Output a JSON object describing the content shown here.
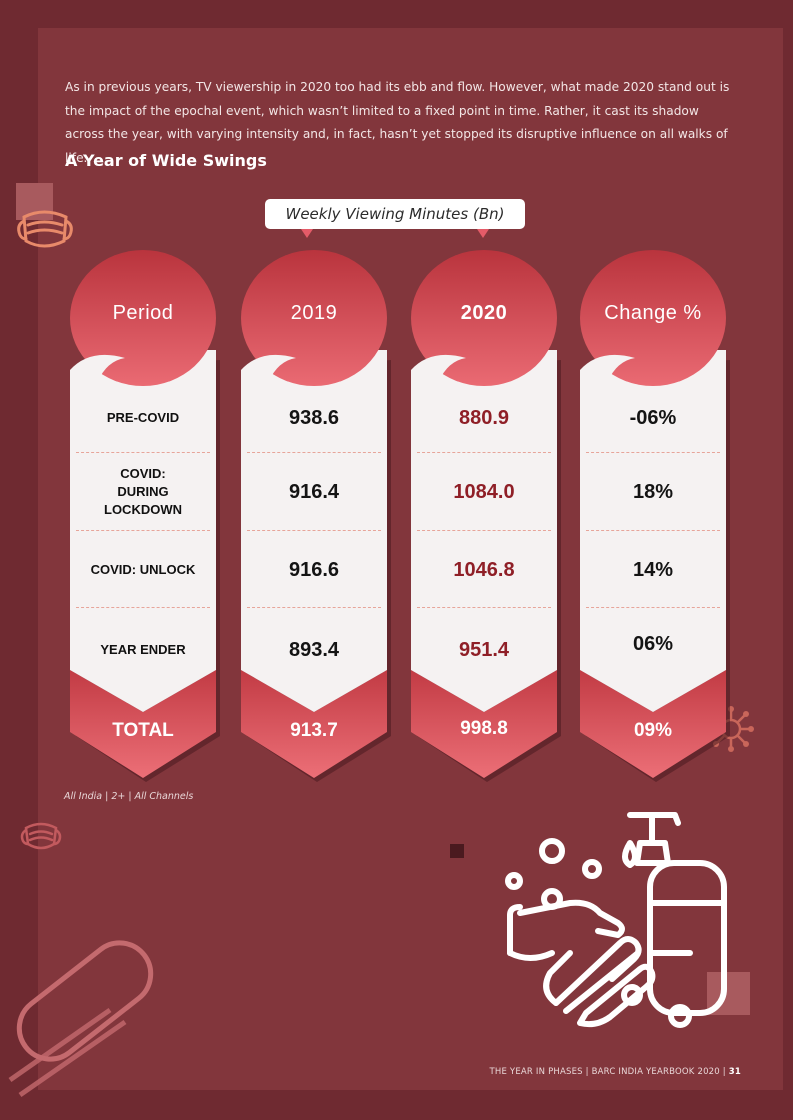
{
  "intro": "As in previous years, TV viewership in 2020 too had its ebb and flow. However, what made 2020 stand out is the impact of the epochal event, which wasn’t limited to a fixed point in time. Rather, it cast its shadow across the year, with varying intensity and, in fact, hasn’t yet stopped its disruptive influence on all walks of life.",
  "section_title": "A Year of Wide Swings",
  "banner_label": "Weekly Viewing Minutes (Bn)",
  "table": {
    "headers": [
      "Period",
      "2019",
      "2020",
      "Change %"
    ],
    "rows": [
      {
        "period": "PRE-COVID",
        "y2019": "938.6",
        "y2020": "880.9",
        "change": "-06%"
      },
      {
        "period": "COVID:\nDURING\nLOCKDOWN",
        "y2019": "916.4",
        "y2020": "1084.0",
        "change": "18%"
      },
      {
        "period": "COVID: UNLOCK",
        "y2019": "916.6",
        "y2020": "1046.8",
        "change": "14%"
      },
      {
        "period": "YEAR ENDER",
        "y2019": "893.4",
        "y2020": "951.4",
        "change": "06%"
      }
    ],
    "total": {
      "period": "TOTAL",
      "y2019": "913.7",
      "y2020": "998.8",
      "change": "09%"
    }
  },
  "footnote": "All India | 2+ | All Channels",
  "footer": {
    "text": "THE YEAR IN PHASES | BARC INDIA YEARBOOK 2020 | ",
    "page": "31"
  },
  "colors": {
    "background": "#6f2a31",
    "panel": "#82363c",
    "accent": "#e45b68",
    "value_2020": "#8f1f27"
  },
  "icons": [
    "face-mask-icon",
    "virus-icon",
    "hand-washing-icon",
    "soap-dispenser-icon",
    "bandage-icon"
  ]
}
